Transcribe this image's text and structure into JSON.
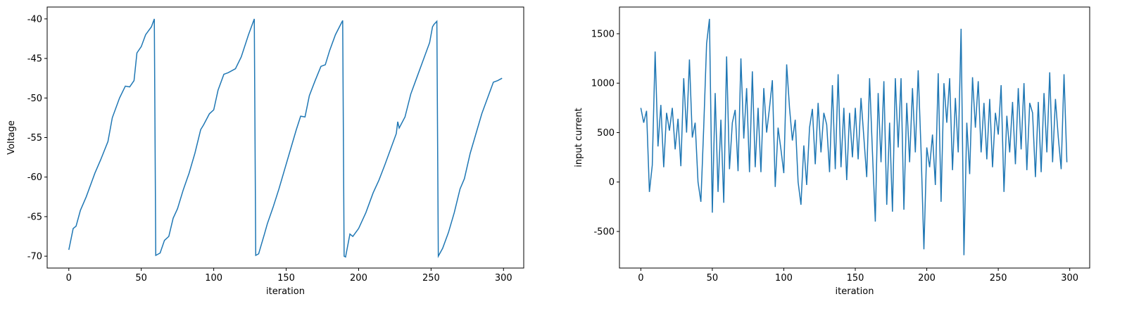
{
  "chart_data": [
    {
      "type": "line",
      "xlabel": "iteration",
      "ylabel": "Voltage",
      "color": "#1f77b4",
      "x": [
        0,
        3,
        5,
        8,
        12,
        18,
        22,
        27,
        30,
        35,
        39,
        42,
        45,
        47,
        50,
        53,
        57,
        59,
        60,
        63,
        66,
        69,
        72,
        75,
        79,
        83,
        87,
        91,
        93,
        97,
        100,
        103,
        107,
        110,
        115,
        119,
        124,
        128,
        129,
        131,
        135,
        137,
        141,
        145,
        149,
        153,
        157,
        160,
        163,
        166,
        170,
        174,
        177,
        180,
        184,
        189,
        190,
        191,
        194,
        196,
        200,
        205,
        210,
        214,
        218,
        222,
        226,
        227,
        228,
        232,
        236,
        240,
        245,
        249,
        251,
        252,
        254,
        255,
        258,
        262,
        266,
        270,
        273,
        277,
        281,
        285,
        290,
        293,
        296,
        299
      ],
      "values": [
        -69.2,
        -66.5,
        -66.2,
        -64.2,
        -62.5,
        -59.5,
        -57.8,
        -55.5,
        -52.5,
        -50,
        -48.5,
        -48.6,
        -47.8,
        -44.3,
        -43.5,
        -42,
        -41,
        -40,
        -69.9,
        -69.6,
        -68,
        -67.5,
        -65.2,
        -64,
        -61.6,
        -59.5,
        -57,
        -54,
        -53.4,
        -52,
        -51.5,
        -49,
        -47,
        -46.8,
        -46.3,
        -44.8,
        -42,
        -40,
        -69.9,
        -69.7,
        -67.2,
        -65.9,
        -63.8,
        -61.5,
        -59,
        -56.5,
        -54,
        -52.3,
        -52.4,
        -49.7,
        -47.8,
        -46,
        -45.8,
        -44,
        -42,
        -40.2,
        -70,
        -70.1,
        -67.2,
        -67.5,
        -66.5,
        -64.5,
        -62,
        -60.4,
        -58.5,
        -56.5,
        -54.5,
        -53,
        -53.8,
        -52.4,
        -49.5,
        -47.5,
        -45,
        -43,
        -41,
        -40.7,
        -40.3,
        -70,
        -69,
        -67,
        -64.5,
        -61.5,
        -60.2,
        -57,
        -54.5,
        -52,
        -49.5,
        -48,
        -47.8,
        -47.5
      ],
      "xlim": [
        -14.95,
        313.95
      ],
      "xticks": [
        0,
        50,
        100,
        150,
        200,
        250,
        300
      ],
      "ylim": [
        -71.5,
        -38.5
      ],
      "yticks": [
        -70,
        -65,
        -60,
        -55,
        -50,
        -45,
        -40
      ]
    },
    {
      "type": "line",
      "xlabel": "iteration",
      "ylabel": "input current",
      "color": "#1f77b4",
      "x": [
        0,
        2,
        4,
        6,
        8,
        10,
        12,
        14,
        16,
        18,
        20,
        22,
        24,
        26,
        28,
        30,
        32,
        34,
        36,
        38,
        40,
        42,
        44,
        46,
        48,
        50,
        52,
        54,
        56,
        58,
        60,
        62,
        64,
        66,
        68,
        70,
        72,
        74,
        76,
        78,
        80,
        82,
        84,
        86,
        88,
        90,
        92,
        94,
        96,
        98,
        100,
        102,
        104,
        106,
        108,
        110,
        112,
        114,
        116,
        118,
        120,
        122,
        124,
        126,
        128,
        130,
        132,
        134,
        136,
        138,
        140,
        142,
        144,
        146,
        148,
        150,
        152,
        154,
        156,
        158,
        160,
        162,
        164,
        166,
        168,
        170,
        172,
        174,
        176,
        178,
        180,
        182,
        184,
        186,
        188,
        190,
        192,
        194,
        196,
        198,
        200,
        202,
        204,
        206,
        208,
        210,
        212,
        214,
        216,
        218,
        220,
        222,
        224,
        226,
        228,
        230,
        232,
        234,
        236,
        238,
        240,
        242,
        244,
        246,
        248,
        250,
        252,
        254,
        256,
        258,
        260,
        262,
        264,
        266,
        268,
        270,
        272,
        274,
        276,
        278,
        280,
        282,
        284,
        286,
        288,
        290,
        292,
        294,
        296,
        298
      ],
      "values": [
        750,
        600,
        720,
        -100,
        170,
        1320,
        360,
        780,
        150,
        700,
        520,
        750,
        330,
        640,
        160,
        1050,
        500,
        1240,
        450,
        600,
        0,
        -200,
        560,
        1400,
        1650,
        -310,
        900,
        -100,
        630,
        -210,
        1270,
        130,
        600,
        730,
        110,
        1250,
        440,
        950,
        100,
        1120,
        150,
        750,
        100,
        950,
        500,
        750,
        1030,
        -50,
        550,
        330,
        90,
        1190,
        750,
        420,
        630,
        0,
        -230,
        370,
        -30,
        550,
        740,
        180,
        800,
        300,
        700,
        580,
        100,
        980,
        130,
        1090,
        150,
        750,
        20,
        700,
        250,
        750,
        230,
        850,
        450,
        50,
        1050,
        300,
        -400,
        900,
        200,
        1020,
        -230,
        600,
        -300,
        1050,
        350,
        1050,
        -280,
        800,
        200,
        950,
        300,
        1130,
        320,
        -680,
        350,
        150,
        480,
        -30,
        1100,
        -200,
        1000,
        600,
        1050,
        120,
        850,
        300,
        1550,
        -740,
        600,
        80,
        1060,
        550,
        1020,
        300,
        800,
        230,
        840,
        150,
        700,
        480,
        980,
        -100,
        670,
        300,
        810,
        180,
        950,
        330,
        1000,
        120,
        800,
        700,
        50,
        810,
        100,
        900,
        300,
        1110,
        200,
        840,
        450,
        130,
        1090,
        200
      ],
      "xlim": [
        -14.95,
        313.95
      ],
      "xticks": [
        0,
        50,
        100,
        150,
        200,
        250,
        300
      ],
      "ylim": [
        -870,
        1770
      ],
      "yticks": [
        -500,
        0,
        500,
        1000,
        1500
      ]
    }
  ]
}
